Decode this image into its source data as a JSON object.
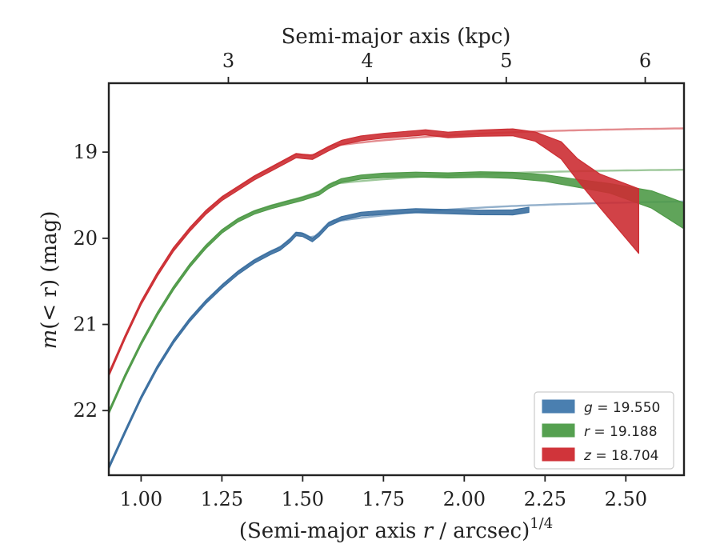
{
  "chart_data": {
    "type": "line",
    "x_axis": {
      "label_main": "(Semi-major axis ",
      "label_var": "r",
      "label_tail": " / arcsec)",
      "label_sup": "1/4",
      "range": [
        0.9,
        2.68
      ],
      "ticks": [
        1.0,
        1.25,
        1.5,
        1.75,
        2.0,
        2.25,
        2.5
      ],
      "tick_labels": [
        "1.00",
        "1.25",
        "1.50",
        "1.75",
        "2.00",
        "2.25",
        "2.50"
      ]
    },
    "y_axis": {
      "label_var": "m",
      "label_paren": "(< r)",
      "label_unit": " (mag)",
      "range": [
        22.75,
        18.2
      ],
      "inverted": true,
      "ticks": [
        19,
        20,
        21,
        22
      ],
      "tick_labels": [
        "19",
        "20",
        "21",
        "22"
      ]
    },
    "top_axis": {
      "label": "Semi-major axis (kpc)",
      "ticks_x": [
        1.27,
        1.7,
        2.13,
        2.56
      ],
      "tick_labels": [
        "3",
        "4",
        "5",
        "6"
      ]
    },
    "legend": {
      "position": "lower right",
      "entries": [
        {
          "band": "g",
          "text": " = 19.550",
          "color": "#4a7fb0"
        },
        {
          "band": "r",
          "text": " = 19.188",
          "color": "#55a050"
        },
        {
          "band": "z",
          "text": " = 18.704",
          "color": "#d0343a"
        }
      ]
    },
    "series": [
      {
        "name": "g",
        "color": "#3b6fa0",
        "data": [
          [
            0.9,
            22.66
          ],
          [
            0.95,
            22.25
          ],
          [
            1.0,
            21.85
          ],
          [
            1.05,
            21.5
          ],
          [
            1.1,
            21.2
          ],
          [
            1.15,
            20.95
          ],
          [
            1.2,
            20.74
          ],
          [
            1.25,
            20.56
          ],
          [
            1.3,
            20.4
          ],
          [
            1.35,
            20.27
          ],
          [
            1.4,
            20.17
          ],
          [
            1.43,
            20.12
          ],
          [
            1.46,
            20.03
          ],
          [
            1.48,
            19.95
          ],
          [
            1.5,
            19.96
          ],
          [
            1.53,
            20.02
          ],
          [
            1.55,
            19.96
          ],
          [
            1.58,
            19.84
          ],
          [
            1.62,
            19.77
          ],
          [
            1.68,
            19.72
          ],
          [
            1.75,
            19.7
          ],
          [
            1.85,
            19.68
          ],
          [
            1.95,
            19.69
          ],
          [
            2.05,
            19.7
          ],
          [
            2.15,
            19.7
          ],
          [
            2.2,
            19.67
          ]
        ],
        "widths": [
          [
            0.9,
            0.04
          ],
          [
            1.5,
            0.04
          ],
          [
            2.0,
            0.05
          ],
          [
            2.2,
            0.06
          ]
        ],
        "model_asymptote": 19.55,
        "model_scale": 0.32,
        "model_offset": 0.86,
        "model_power": 2.0
      },
      {
        "name": "r",
        "color": "#4f9a48",
        "data": [
          [
            0.9,
            22.02
          ],
          [
            0.95,
            21.6
          ],
          [
            1.0,
            21.22
          ],
          [
            1.05,
            20.88
          ],
          [
            1.1,
            20.58
          ],
          [
            1.15,
            20.32
          ],
          [
            1.2,
            20.1
          ],
          [
            1.25,
            19.92
          ],
          [
            1.3,
            19.79
          ],
          [
            1.35,
            19.7
          ],
          [
            1.4,
            19.64
          ],
          [
            1.45,
            19.59
          ],
          [
            1.5,
            19.54
          ],
          [
            1.55,
            19.48
          ],
          [
            1.58,
            19.4
          ],
          [
            1.62,
            19.33
          ],
          [
            1.68,
            19.29
          ],
          [
            1.75,
            19.27
          ],
          [
            1.85,
            19.26
          ],
          [
            1.95,
            19.27
          ],
          [
            2.05,
            19.26
          ],
          [
            2.15,
            19.27
          ],
          [
            2.25,
            19.3
          ],
          [
            2.33,
            19.35
          ],
          [
            2.45,
            19.42
          ],
          [
            2.58,
            19.55
          ],
          [
            2.68,
            19.74
          ]
        ],
        "widths": [
          [
            0.9,
            0.04
          ],
          [
            1.5,
            0.04
          ],
          [
            2.0,
            0.06
          ],
          [
            2.3,
            0.08
          ],
          [
            2.5,
            0.12
          ],
          [
            2.68,
            0.3
          ]
        ],
        "model_asymptote": 19.188,
        "model_scale": 0.3,
        "model_offset": 0.86,
        "model_power": 2.0
      },
      {
        "name": "z",
        "color": "#cc2e33",
        "data": [
          [
            0.9,
            21.58
          ],
          [
            0.95,
            21.15
          ],
          [
            1.0,
            20.75
          ],
          [
            1.05,
            20.42
          ],
          [
            1.1,
            20.13
          ],
          [
            1.15,
            19.9
          ],
          [
            1.2,
            19.7
          ],
          [
            1.25,
            19.54
          ],
          [
            1.3,
            19.42
          ],
          [
            1.35,
            19.3
          ],
          [
            1.4,
            19.2
          ],
          [
            1.45,
            19.1
          ],
          [
            1.48,
            19.04
          ],
          [
            1.5,
            19.05
          ],
          [
            1.53,
            19.06
          ],
          [
            1.58,
            18.96
          ],
          [
            1.62,
            18.89
          ],
          [
            1.68,
            18.84
          ],
          [
            1.75,
            18.81
          ],
          [
            1.85,
            18.78
          ],
          [
            1.88,
            18.77
          ],
          [
            1.95,
            18.8
          ],
          [
            2.05,
            18.78
          ],
          [
            2.15,
            18.77
          ],
          [
            2.22,
            18.82
          ],
          [
            2.3,
            18.98
          ],
          [
            2.35,
            19.2
          ],
          [
            2.42,
            19.45
          ],
          [
            2.54,
            19.8
          ]
        ],
        "widths": [
          [
            0.9,
            0.04
          ],
          [
            1.5,
            0.05
          ],
          [
            1.9,
            0.06
          ],
          [
            2.15,
            0.08
          ],
          [
            2.25,
            0.12
          ],
          [
            2.3,
            0.2
          ],
          [
            2.35,
            0.25
          ],
          [
            2.45,
            0.45
          ],
          [
            2.54,
            0.75
          ]
        ],
        "model_asymptote": 18.704,
        "model_scale": 0.3,
        "model_offset": 0.86,
        "model_power": 2.0
      }
    ]
  }
}
